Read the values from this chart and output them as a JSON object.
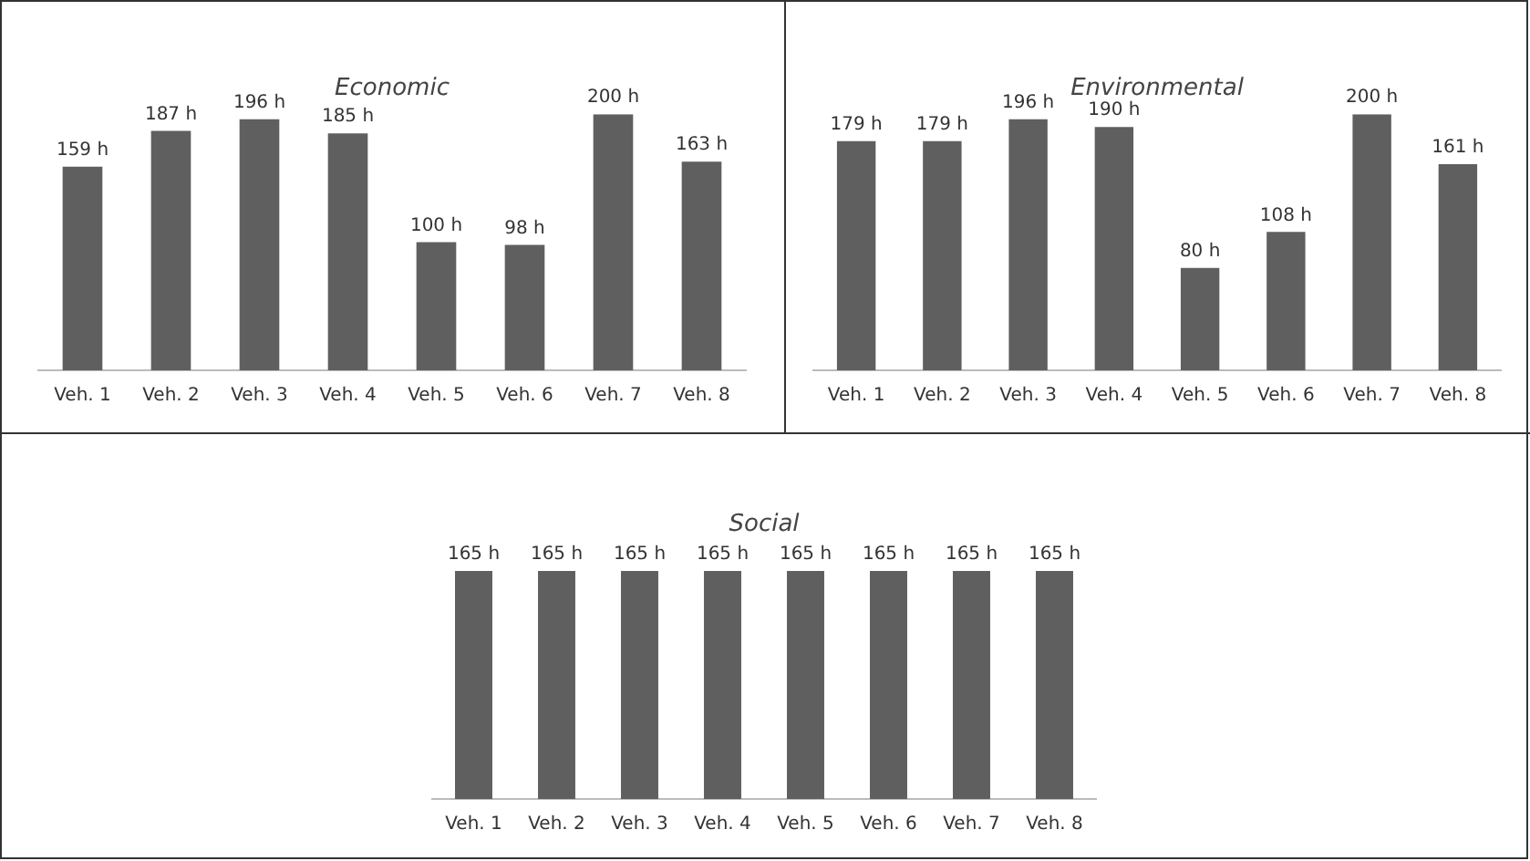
{
  "chart_data": [
    {
      "type": "bar",
      "title": "Economic",
      "categories": [
        "Veh. 1",
        "Veh. 2",
        "Veh. 3",
        "Veh. 4",
        "Veh. 5",
        "Veh. 6",
        "Veh. 7",
        "Veh. 8"
      ],
      "values": [
        159,
        187,
        196,
        185,
        100,
        98,
        200,
        163
      ],
      "value_labels": [
        "159 h",
        "187 h",
        "196 h",
        "185 h",
        "100 h",
        "98 h",
        "200 h",
        "163 h"
      ],
      "color": "#5f5f5f",
      "grid": false,
      "legend": false
    },
    {
      "type": "bar",
      "title": "Environmental",
      "categories": [
        "Veh. 1",
        "Veh. 2",
        "Veh. 3",
        "Veh. 4",
        "Veh. 5",
        "Veh. 6",
        "Veh. 7",
        "Veh. 8"
      ],
      "values": [
        179,
        179,
        196,
        190,
        80,
        108,
        200,
        161
      ],
      "value_labels": [
        "179 h",
        "179 h",
        "196 h",
        "190 h",
        "80 h",
        "108 h",
        "200 h",
        "161 h"
      ],
      "color": "#5f5f5f",
      "grid": false,
      "legend": false
    },
    {
      "type": "bar",
      "title": "Social",
      "categories": [
        "Veh. 1",
        "Veh. 2",
        "Veh. 3",
        "Veh. 4",
        "Veh. 5",
        "Veh. 6",
        "Veh. 7",
        "Veh. 8"
      ],
      "values": [
        165,
        165,
        165,
        165,
        165,
        165,
        165,
        165
      ],
      "value_labels": [
        "165 h",
        "165 h",
        "165 h",
        "165 h",
        "165 h",
        "165 h",
        "165 h",
        "165 h"
      ],
      "color": "#5f5f5f",
      "grid": false,
      "legend": false
    }
  ]
}
